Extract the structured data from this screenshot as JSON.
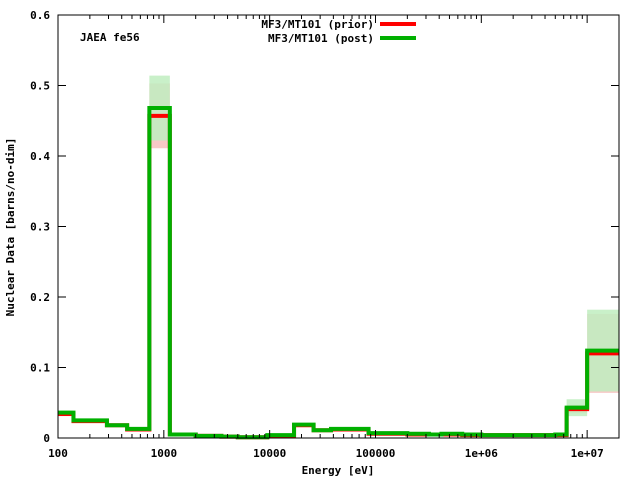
{
  "chart_data": {
    "type": "line",
    "step": true,
    "annotation": "JAEA fe56",
    "xlabel": "Energy [eV]",
    "ylabel": "Nuclear Data [barns/no-dim]",
    "x_scale": "log",
    "xlim": [
      100,
      20000000
    ],
    "ylim": [
      0,
      0.6
    ],
    "grid": false,
    "legend_position": "top-center",
    "x_ticks": [
      {
        "value": 100,
        "label": "100"
      },
      {
        "value": 1000,
        "label": "1000"
      },
      {
        "value": 10000,
        "label": "10000"
      },
      {
        "value": 100000,
        "label": "100000"
      },
      {
        "value": 1000000,
        "label": "1e+06"
      },
      {
        "value": 10000000,
        "label": "1e+07"
      }
    ],
    "y_ticks": [
      {
        "value": 0,
        "label": "0"
      },
      {
        "value": 0.1,
        "label": "0.1"
      },
      {
        "value": 0.2,
        "label": "0.2"
      },
      {
        "value": 0.3,
        "label": "0.3"
      },
      {
        "value": 0.4,
        "label": "0.4"
      },
      {
        "value": 0.5,
        "label": "0.5"
      },
      {
        "value": 0.6,
        "label": "0.6"
      }
    ],
    "bin_edges": [
      100,
      140,
      290,
      450,
      730,
      1140,
      2000,
      3500,
      5000,
      9500,
      17000,
      26000,
      38000,
      53000,
      86000,
      130000,
      200000,
      320000,
      420000,
      660000,
      1000000,
      1700000,
      3000000,
      5000000,
      6400000,
      10000000,
      20000000
    ],
    "series": [
      {
        "name": "MF3/MT101 (prior)",
        "color": "#ff0000",
        "band_color": "#f7c3c1",
        "values": [
          0.034,
          0.024,
          0.018,
          0.012,
          0.457,
          0.005,
          0.003,
          0.002,
          0.001,
          0.003,
          0.018,
          0.011,
          0.012,
          0.012,
          0.006,
          0.006,
          0.005,
          0.005,
          0.005,
          0.004,
          0.004,
          0.004,
          0.004,
          0.004,
          0.041,
          0.12
        ],
        "uncertainty": [
          0.003,
          0.002,
          0.002,
          0.001,
          0.046,
          0.001,
          0.001,
          0.001,
          0.001,
          0.001,
          0.002,
          0.001,
          0.001,
          0.001,
          0.001,
          0.001,
          0.001,
          0.001,
          0.001,
          0.001,
          0.001,
          0.001,
          0.001,
          0.001,
          0.006,
          0.056
        ]
      },
      {
        "name": "MF3/MT101 (post)",
        "color": "#00b000",
        "band_color": "#bfedc0",
        "values": [
          0.036,
          0.025,
          0.018,
          0.013,
          0.468,
          0.005,
          0.003,
          0.002,
          0.001,
          0.004,
          0.019,
          0.011,
          0.013,
          0.013,
          0.007,
          0.007,
          0.006,
          0.005,
          0.006,
          0.005,
          0.004,
          0.004,
          0.004,
          0.005,
          0.043,
          0.124
        ],
        "uncertainty": [
          0.003,
          0.002,
          0.002,
          0.001,
          0.046,
          0.001,
          0.001,
          0.001,
          0.001,
          0.001,
          0.002,
          0.001,
          0.001,
          0.001,
          0.001,
          0.001,
          0.001,
          0.001,
          0.001,
          0.001,
          0.001,
          0.001,
          0.001,
          0.001,
          0.012,
          0.058
        ]
      }
    ]
  }
}
